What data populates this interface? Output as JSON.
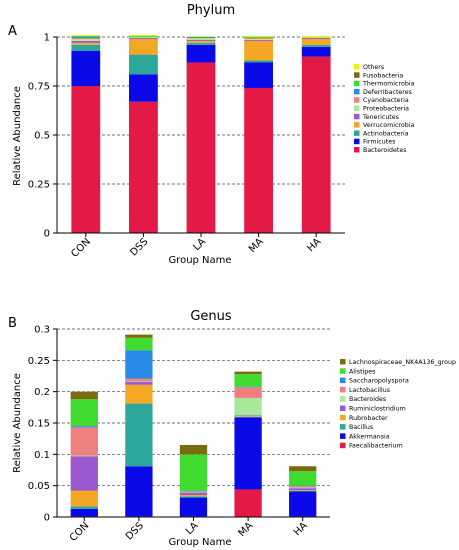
{
  "panels": [
    {
      "label": "A",
      "chart_data": {
        "type": "bar",
        "stacked": true,
        "title": "Phylum",
        "xlabel": "Group Name",
        "ylabel": "Relative Abundance",
        "ylim": [
          0,
          1
        ],
        "yticks": [
          "0",
          "0.25",
          "0.5",
          "0.75",
          "1"
        ],
        "ytick_values": [
          0,
          0.25,
          0.5,
          0.75,
          1
        ],
        "grid": "dashed horizontal",
        "legend_position": "right",
        "categories": [
          "CON",
          "DSS",
          "LA",
          "MA",
          "HA"
        ],
        "series": [
          {
            "name": "Bacteroidetes",
            "color": "#e31a45",
            "values": [
              0.75,
              0.67,
              0.87,
              0.74,
              0.9
            ]
          },
          {
            "name": "Firmicutes",
            "color": "#0a0ae8",
            "values": [
              0.18,
              0.14,
              0.09,
              0.13,
              0.05
            ]
          },
          {
            "name": "Actinobacteria",
            "color": "#2ba89a",
            "values": [
              0.03,
              0.1,
              0.01,
              0.01,
              0.01
            ]
          },
          {
            "name": "Verrucomicrobia",
            "color": "#f5a623",
            "values": [
              0.01,
              0.08,
              0.01,
              0.1,
              0.03
            ]
          },
          {
            "name": "Tenericutes",
            "color": "#9b59d0",
            "values": [
              0.01,
              0.005,
              0.005,
              0.005,
              0.005
            ]
          },
          {
            "name": "Proteobacteria",
            "color": "#a8e89a",
            "values": [
              0.01,
              0.005,
              0.01,
              0.005,
              0.005
            ]
          },
          {
            "name": "Cyanobacteria",
            "color": "#f08080",
            "values": [
              0.005,
              0,
              0,
              0.005,
              0
            ]
          },
          {
            "name": "Deferribacteres",
            "color": "#2a8ae8",
            "values": [
              0.005,
              0,
              0.005,
              0,
              0
            ]
          },
          {
            "name": "Thermomicrobia",
            "color": "#3fdc2f",
            "values": [
              0.005,
              0.005,
              0,
              0.005,
              0
            ]
          },
          {
            "name": "Fusobacteria",
            "color": "#7a6a10",
            "values": [
              0,
              0,
              0,
              0,
              0
            ]
          },
          {
            "name": "Others",
            "color": "#f2f200",
            "values": [
              0.005,
              0.005,
              0.005,
              0.005,
              0.005
            ]
          }
        ]
      }
    },
    {
      "label": "B",
      "chart_data": {
        "type": "bar",
        "stacked": true,
        "title": "Genus",
        "xlabel": "Group Name",
        "ylabel": "Relative Abundance",
        "ylim": [
          0,
          0.3
        ],
        "yticks": [
          "0",
          "0.05",
          "0.1",
          "0.15",
          "0.2",
          "0.25",
          "0.3"
        ],
        "ytick_values": [
          0,
          0.05,
          0.1,
          0.15,
          0.2,
          0.25,
          0.3
        ],
        "grid": "dashed horizontal",
        "legend_position": "right",
        "categories": [
          "CON",
          "DSS",
          "LA",
          "MA",
          "HA"
        ],
        "series": [
          {
            "name": "Faecalibacterium",
            "color": "#e31a45",
            "values": [
              0.001,
              0.001,
              0.001,
              0.044,
              0.001
            ]
          },
          {
            "name": "Akkermansia",
            "color": "#0a0ae8",
            "values": [
              0.012,
              0.08,
              0.03,
              0.115,
              0.04
            ]
          },
          {
            "name": "Bacillus",
            "color": "#2ba89a",
            "values": [
              0.004,
              0.1,
              0.002,
              0.001,
              0.001
            ]
          },
          {
            "name": "Rubrobacter",
            "color": "#f5a623",
            "values": [
              0.025,
              0.03,
              0.002,
              0.001,
              0.001
            ]
          },
          {
            "name": "Ruminiclostridium",
            "color": "#9b59d0",
            "values": [
              0.055,
              0.005,
              0.004,
              0.001,
              0.003
            ]
          },
          {
            "name": "Bacteroides",
            "color": "#a8e89a",
            "values": [
              0.001,
              0.001,
              0.001,
              0.028,
              0.001
            ]
          },
          {
            "name": "Lactobacillus",
            "color": "#f08080",
            "values": [
              0.045,
              0.004,
              0.001,
              0.017,
              0.002
            ]
          },
          {
            "name": "Saccharopolyspora",
            "color": "#2a8ae8",
            "values": [
              0.002,
              0.045,
              0.001,
              0.001,
              0.001
            ]
          },
          {
            "name": "Alistipes",
            "color": "#3fdc2f",
            "values": [
              0.043,
              0.02,
              0.058,
              0.02,
              0.023
            ]
          },
          {
            "name": "Lachnospiraceae_NK4A136_group",
            "color": "#7a6a10",
            "values": [
              0.012,
              0.005,
              0.015,
              0.004,
              0.008
            ]
          }
        ]
      }
    }
  ]
}
